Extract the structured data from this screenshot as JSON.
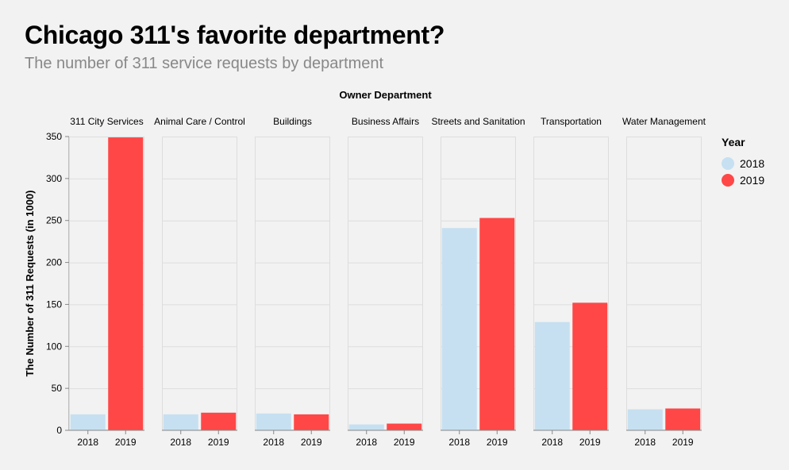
{
  "title": "Chicago 311's favorite department?",
  "subtitle": "The number of 311 service requests by department",
  "colors": {
    "2018": "#c6e0f1",
    "2019": "#ff4747"
  },
  "chart_data": {
    "type": "bar",
    "facet_title": "Owner Department",
    "ylabel": "The Number of 311 Requests (in 1000)",
    "ylim": [
      0,
      350
    ],
    "yticks": [
      0,
      50,
      100,
      150,
      200,
      250,
      300,
      350
    ],
    "grid": true,
    "legend_title": "Year",
    "legend_position": "right",
    "categories": [
      "2018",
      "2019"
    ],
    "facets": [
      {
        "name": "311 City Services",
        "values": [
          19,
          349
        ]
      },
      {
        "name": "Animal Care / Control",
        "values": [
          19,
          21
        ]
      },
      {
        "name": "Buildings",
        "values": [
          20,
          19
        ]
      },
      {
        "name": "Business Affairs",
        "values": [
          7,
          8
        ]
      },
      {
        "name": "Streets and Sanitation",
        "values": [
          241,
          253
        ]
      },
      {
        "name": "Transportation",
        "values": [
          129,
          152
        ]
      },
      {
        "name": "Water Management",
        "values": [
          25,
          26
        ]
      }
    ],
    "series": [
      {
        "name": "2018"
      },
      {
        "name": "2019"
      }
    ]
  }
}
